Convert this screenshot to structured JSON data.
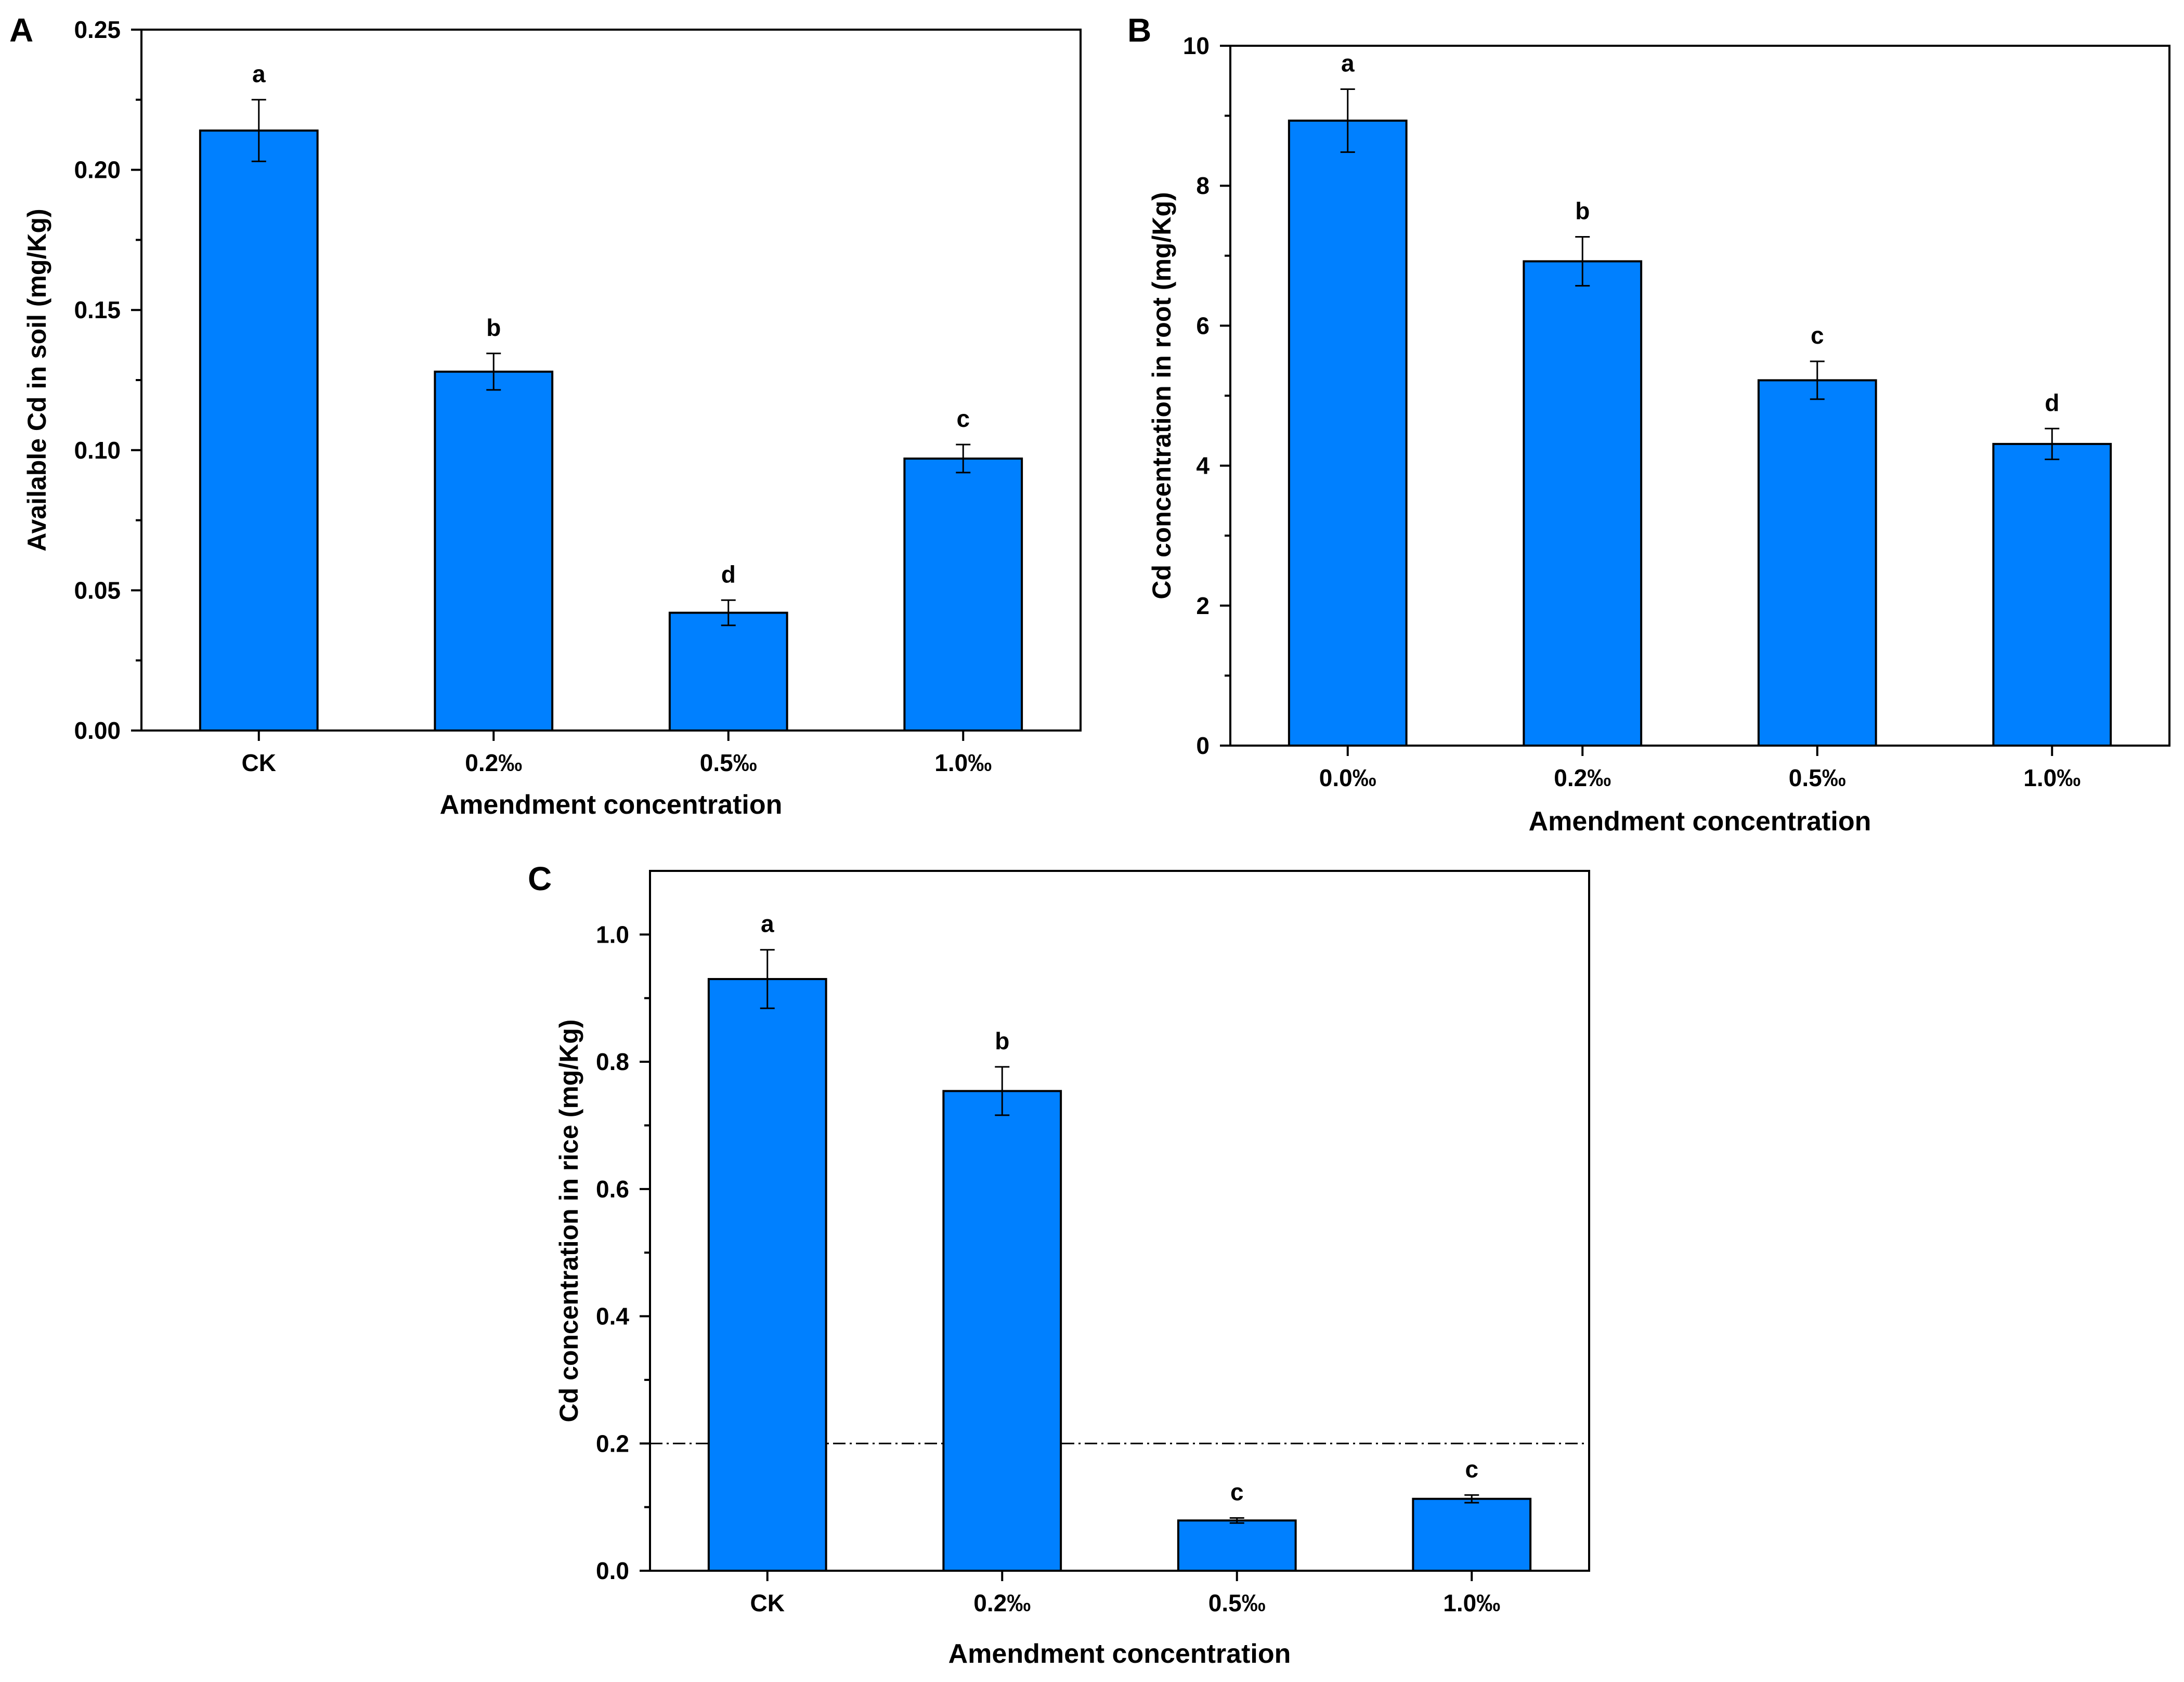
{
  "chart_data": [
    {
      "panel_label": "A",
      "type": "bar",
      "categories": [
        "CK",
        "0.2‰",
        "0.5‰",
        "1.0‰"
      ],
      "values": [
        0.214,
        0.128,
        0.042,
        0.097
      ],
      "errors": [
        0.011,
        0.0065,
        0.0045,
        0.005
      ],
      "significance": [
        "a",
        "b",
        "d",
        "c"
      ],
      "xlabel": "Amendment concentration",
      "ylabel": "Available Cd in soil (mg/Kg)",
      "ylim": [
        0,
        0.25
      ],
      "yticks": [
        0.0,
        0.05,
        0.1,
        0.15,
        0.2,
        0.25
      ],
      "ytick_labels": [
        "0.00",
        "0.05",
        "0.10",
        "0.15",
        "0.20",
        "0.25"
      ],
      "bar_color": "#0080FF",
      "reference_line": null
    },
    {
      "panel_label": "B",
      "type": "bar",
      "categories": [
        "0.0‰",
        "0.2‰",
        "0.5‰",
        "1.0‰"
      ],
      "values": [
        8.93,
        6.92,
        5.22,
        4.31
      ],
      "errors": [
        0.45,
        0.35,
        0.27,
        0.22
      ],
      "significance": [
        "a",
        "b",
        "c",
        "d"
      ],
      "xlabel": "Amendment concentration",
      "ylabel": "Cd concentration in root (mg/Kg)",
      "ylim": [
        0,
        10
      ],
      "yticks": [
        0,
        2,
        4,
        6,
        8,
        10
      ],
      "ytick_labels": [
        "0",
        "2",
        "4",
        "6",
        "8",
        "10"
      ],
      "bar_color": "#0080FF",
      "reference_line": null
    },
    {
      "panel_label": "C",
      "type": "bar",
      "categories": [
        "CK",
        "0.2‰",
        "0.5‰",
        "1.0‰"
      ],
      "values": [
        0.93,
        0.754,
        0.079,
        0.113
      ],
      "errors": [
        0.046,
        0.038,
        0.004,
        0.006
      ],
      "significance": [
        "a",
        "b",
        "c",
        "c"
      ],
      "xlabel": "Amendment concentration",
      "ylabel": "Cd concentration in rice (mg/Kg)",
      "ylim": [
        0,
        1.1
      ],
      "yticks": [
        0.0,
        0.2,
        0.4,
        0.6,
        0.8,
        1.0
      ],
      "ytick_labels": [
        "0.0",
        "0.2",
        "0.4",
        "0.6",
        "0.8",
        "1.0"
      ],
      "bar_color": "#0080FF",
      "reference_line": 0.2
    }
  ]
}
